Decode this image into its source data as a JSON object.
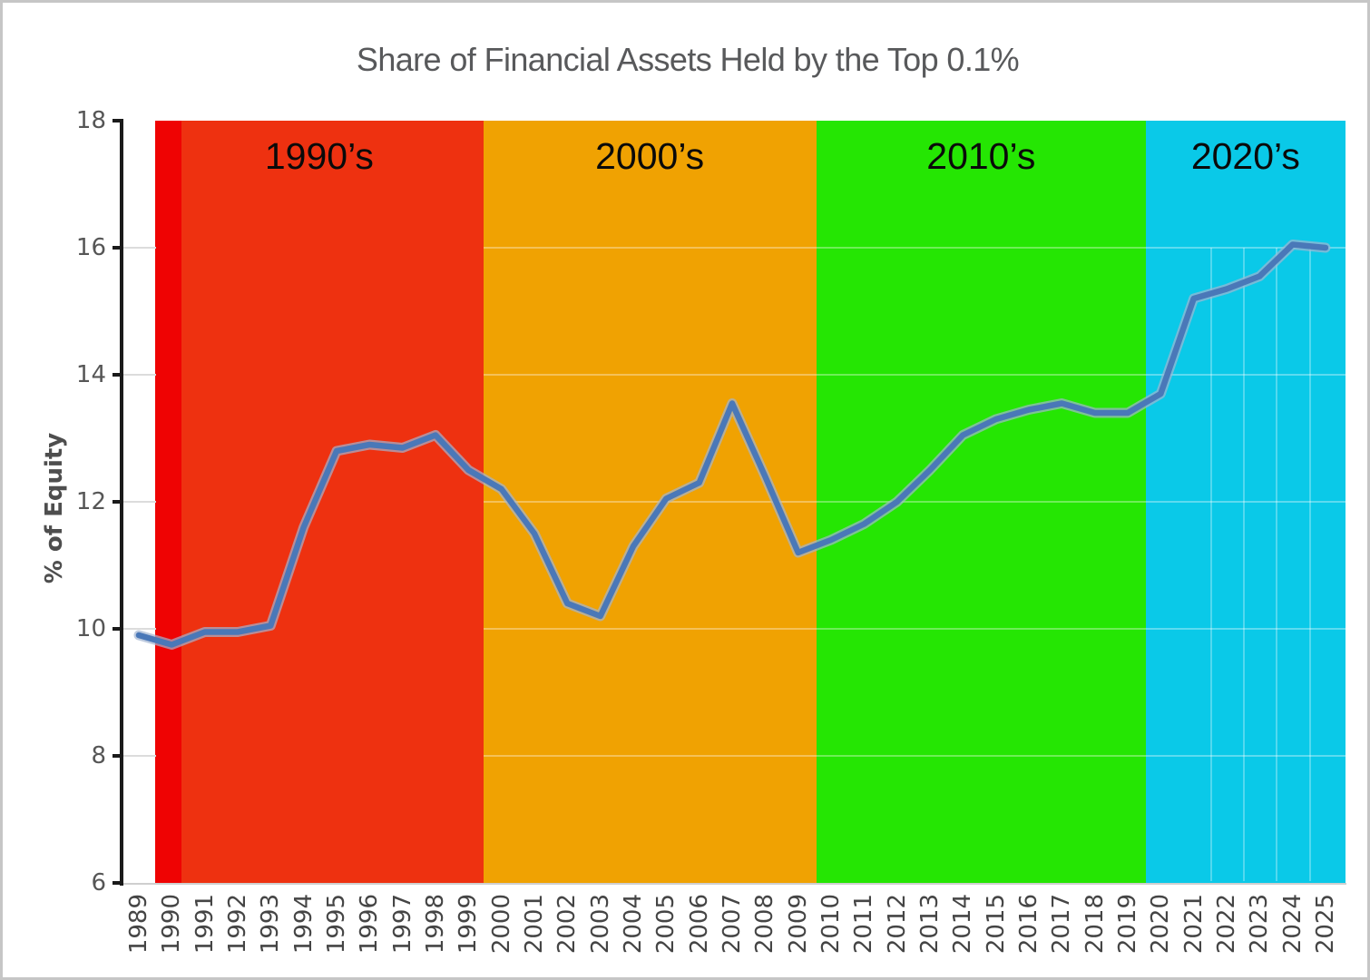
{
  "chart_data": {
    "type": "line",
    "title": "Share of Financial Assets Held by the Top 0.1%",
    "ylabel": "% of Equity",
    "ylim": [
      6,
      18
    ],
    "yticks": [
      18,
      16,
      14,
      12,
      10,
      8,
      6
    ],
    "x": [
      "1989",
      "1990",
      "1991",
      "1992",
      "1993",
      "1994",
      "1995",
      "1996",
      "1997",
      "1998",
      "1999",
      "2000",
      "2001",
      "2002",
      "2003",
      "2004",
      "2005",
      "2006",
      "2007",
      "2008",
      "2009",
      "2010",
      "2011",
      "2012",
      "2013",
      "2014",
      "2015",
      "2016",
      "2017",
      "2018",
      "2019",
      "2020",
      "2021",
      "2022",
      "2023",
      "2024",
      "2025"
    ],
    "series": [
      {
        "name": "Share of financial assets held by the top 0.1% (% of equity)",
        "color": "#4a78b8",
        "halo_color": "#a3b5d1",
        "values": [
          9.9,
          9.75,
          9.95,
          9.95,
          10.05,
          11.6,
          12.8,
          12.9,
          12.85,
          13.05,
          12.5,
          12.2,
          11.5,
          10.4,
          10.2,
          11.3,
          12.05,
          12.3,
          13.55,
          12.4,
          11.2,
          11.4,
          11.65,
          12.0,
          12.5,
          13.05,
          13.3,
          13.45,
          13.55,
          13.4,
          13.4,
          13.7,
          15.2,
          15.35,
          15.55,
          16.05,
          16.0
        ]
      }
    ],
    "legend": "none",
    "grid": "faint white gridlines over colored decade bands",
    "bands": [
      {
        "name": "decade-1990s",
        "label": "1990’s",
        "color": "#ee3110",
        "from_year": 1989.5,
        "to_year": 1999.45
      },
      {
        "name": "decade-2000s",
        "label": "2000’s",
        "color": "#f0a202",
        "from_year": 1999.45,
        "to_year": 2009.55
      },
      {
        "name": "decade-2010s",
        "label": "2010’s",
        "color": "#25e603",
        "from_year": 2009.55,
        "to_year": 2019.55
      },
      {
        "name": "decade-2020s",
        "label": "2020’s",
        "color": "#0ac9e8",
        "from_year": 2019.55,
        "to_year": 2025.6
      },
      {
        "name": "red-accent-strip",
        "label": "",
        "color": "#ef0303",
        "from_year": 1989.5,
        "to_year": 1990.3
      }
    ],
    "axis": {
      "axis_color": "#1a1a1a",
      "tick_label_color": "#565656",
      "x_label_color": "#454545",
      "title_color": "#58595b"
    }
  }
}
